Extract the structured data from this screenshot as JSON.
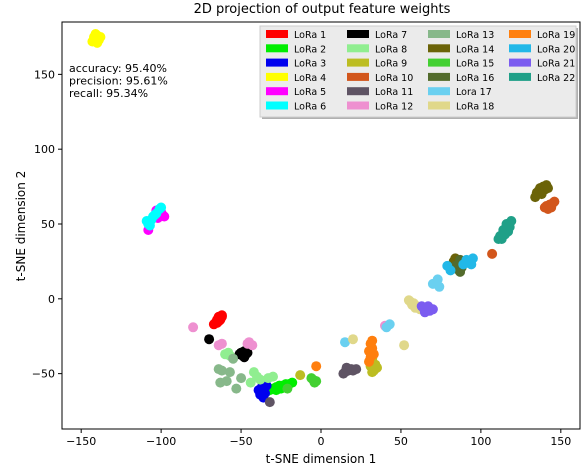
{
  "chart_data": {
    "type": "scatter",
    "title": "2D projection of output feature weights",
    "xlabel": "t-SNE dimension 1",
    "ylabel": "t-SNE dimension 2",
    "xlim": [
      -162,
      162
    ],
    "ylim": [
      -87,
      185
    ],
    "xticks": [
      -150,
      -100,
      -50,
      0,
      50,
      100,
      150
    ],
    "yticks": [
      -50,
      0,
      50,
      100,
      150
    ],
    "grid": false,
    "legend_position": "top-right",
    "legend_columns": 4,
    "annotation": [
      "accuracy: 95.40%",
      "precision: 95.61%",
      "recall: 95.34%"
    ],
    "series": [
      {
        "name": "LoRa 1",
        "color": "#ff0000",
        "points": [
          [
            -62,
            -12
          ],
          [
            -63,
            -14
          ],
          [
            -64,
            -15
          ],
          [
            -65,
            -16
          ],
          [
            -66,
            -16
          ],
          [
            -63,
            -13
          ],
          [
            -62,
            -11
          ],
          [
            -65,
            -14
          ],
          [
            -67,
            -17
          ],
          [
            -64,
            -12
          ]
        ]
      },
      {
        "name": "LoRa 2",
        "color": "#00ee00",
        "points": [
          [
            -30,
            -60
          ],
          [
            -28,
            -59
          ],
          [
            -26,
            -58
          ],
          [
            -24,
            -58
          ],
          [
            -22,
            -57
          ],
          [
            -20,
            -57
          ],
          [
            -32,
            -61
          ],
          [
            -34,
            -62
          ],
          [
            -28,
            -61
          ],
          [
            -25,
            -60
          ],
          [
            -18,
            -56
          ],
          [
            -35,
            -59
          ]
        ]
      },
      {
        "name": "LoRa 3",
        "color": "#0000ee",
        "points": [
          [
            -36,
            -60
          ],
          [
            -37,
            -62
          ],
          [
            -38,
            -64
          ],
          [
            -36,
            -66
          ],
          [
            -35,
            -63
          ],
          [
            -37,
            -59
          ],
          [
            -39,
            -61
          ],
          [
            -36,
            -57
          ],
          [
            -34,
            -58
          ]
        ]
      },
      {
        "name": "LoRa 4",
        "color": "#ffff00",
        "points": [
          [
            -140,
            176
          ],
          [
            -141,
            174
          ],
          [
            -142,
            175
          ],
          [
            -139,
            173
          ],
          [
            -143,
            172
          ],
          [
            -140,
            171
          ],
          [
            -141,
            177
          ],
          [
            -138,
            175
          ]
        ]
      },
      {
        "name": "LoRa 5",
        "color": "#ff00ff",
        "points": [
          [
            -100,
            58
          ],
          [
            -99,
            56
          ],
          [
            -102,
            54
          ],
          [
            -101,
            57
          ],
          [
            -108,
            46
          ],
          [
            -98,
            55
          ],
          [
            -103,
            59
          ]
        ]
      },
      {
        "name": "LoRa 6",
        "color": "#00ffff",
        "points": [
          [
            -106,
            53
          ],
          [
            -107,
            51
          ],
          [
            -105,
            55
          ],
          [
            -108,
            50
          ],
          [
            -104,
            56
          ],
          [
            -103,
            57
          ],
          [
            -107,
            49
          ],
          [
            -109,
            52
          ],
          [
            -101,
            60
          ],
          [
            -100,
            61
          ]
        ]
      },
      {
        "name": "LoRa 7",
        "color": "#000000",
        "points": [
          [
            -50,
            -36
          ],
          [
            -48,
            -35
          ],
          [
            -47,
            -37
          ],
          [
            -49,
            -38
          ],
          [
            -51,
            -37
          ],
          [
            -46,
            -36
          ],
          [
            -48,
            -39
          ],
          [
            -70,
            -27
          ]
        ]
      },
      {
        "name": "LoRa 8",
        "color": "#90ee90",
        "points": [
          [
            -57,
            -38
          ],
          [
            -58,
            -36
          ],
          [
            -40,
            -52
          ],
          [
            -38,
            -54
          ],
          [
            -44,
            -56
          ],
          [
            -33,
            -53
          ],
          [
            -30,
            -52
          ],
          [
            -42,
            -49
          ],
          [
            -60,
            -37
          ]
        ]
      },
      {
        "name": "LoRa 9",
        "color": "#bcbd22",
        "points": [
          [
            -13,
            -51
          ],
          [
            33,
            -48
          ],
          [
            32,
            -40
          ],
          [
            31,
            -45
          ],
          [
            34,
            -44
          ],
          [
            32,
            -49
          ],
          [
            35,
            -46
          ]
        ]
      },
      {
        "name": "LoRa 10",
        "color": "#d2561c",
        "points": [
          [
            141,
            62
          ],
          [
            143,
            63
          ],
          [
            145,
            64
          ],
          [
            144,
            61
          ],
          [
            142,
            60
          ],
          [
            146,
            65
          ],
          [
            107,
            30
          ],
          [
            140,
            61
          ]
        ]
      },
      {
        "name": "LoRa 11",
        "color": "#5f5464",
        "points": [
          [
            17,
            -48
          ],
          [
            19,
            -47
          ],
          [
            15,
            -49
          ],
          [
            20,
            -48
          ],
          [
            16,
            -46
          ],
          [
            14,
            -50
          ],
          [
            -32,
            -69
          ],
          [
            22,
            -47
          ]
        ]
      },
      {
        "name": "LoRa 12",
        "color": "#ee90d0",
        "points": [
          [
            -45,
            -29
          ],
          [
            -43,
            -31
          ],
          [
            -64,
            -31
          ],
          [
            -62,
            -30
          ],
          [
            -46,
            -30
          ],
          [
            40,
            -18
          ],
          [
            -80,
            -19
          ]
        ]
      },
      {
        "name": "LoRa 13",
        "color": "#87b88a",
        "points": [
          [
            -55,
            -40
          ],
          [
            -57,
            -49
          ],
          [
            -64,
            -47
          ],
          [
            -62,
            -48
          ],
          [
            -63,
            -56
          ],
          [
            -53,
            -60
          ],
          [
            -59,
            -55
          ],
          [
            -50,
            -53
          ]
        ]
      },
      {
        "name": "LoRa 14",
        "color": "#6b6308",
        "points": [
          [
            136,
            72
          ],
          [
            137,
            74
          ],
          [
            139,
            75
          ],
          [
            140,
            73
          ],
          [
            135,
            71
          ],
          [
            141,
            76
          ],
          [
            138,
            70
          ],
          [
            142,
            74
          ],
          [
            134,
            68
          ],
          [
            83,
            25
          ],
          [
            84,
            27
          ]
        ]
      },
      {
        "name": "LoRa 15",
        "color": "#43d032",
        "points": [
          [
            -5,
            -54
          ],
          [
            -3,
            -55
          ],
          [
            -4,
            -56
          ],
          [
            -6,
            -53
          ],
          [
            -21,
            -60
          ]
        ]
      },
      {
        "name": "LoRa 16",
        "color": "#536b2c",
        "points": [
          [
            84,
            22
          ],
          [
            85,
            20
          ],
          [
            86,
            23
          ],
          [
            87,
            26
          ],
          [
            87,
            18
          ],
          [
            88,
            21
          ]
        ]
      },
      {
        "name": "Lora 17",
        "color": "#6ad0f0",
        "points": [
          [
            73,
            13
          ],
          [
            74,
            8
          ],
          [
            43,
            -17
          ],
          [
            15,
            -29
          ],
          [
            41,
            -19
          ],
          [
            70,
            10
          ]
        ]
      },
      {
        "name": "LoRa 18",
        "color": "#e0d88a",
        "points": [
          [
            56,
            -2
          ],
          [
            58,
            -3
          ],
          [
            55,
            -1
          ],
          [
            60,
            -5
          ],
          [
            62,
            -7
          ],
          [
            57,
            -4
          ],
          [
            59,
            -6
          ],
          [
            20,
            -27
          ],
          [
            52,
            -31
          ]
        ]
      },
      {
        "name": "LoRa 19",
        "color": "#ff7f0e",
        "points": [
          [
            31,
            -30
          ],
          [
            32,
            -33
          ],
          [
            30,
            -35
          ],
          [
            33,
            -37
          ],
          [
            31,
            -39
          ],
          [
            -3,
            -45
          ],
          [
            32,
            -28
          ],
          [
            30,
            -42
          ]
        ]
      },
      {
        "name": "LoRa 20",
        "color": "#22b8e8",
        "points": [
          [
            91,
            26
          ],
          [
            93,
            25
          ],
          [
            95,
            27
          ],
          [
            92,
            24
          ],
          [
            94,
            23
          ],
          [
            89,
            23
          ],
          [
            81,
            19
          ],
          [
            79,
            22
          ]
        ]
      },
      {
        "name": "LoRa 21",
        "color": "#7b5cf0",
        "points": [
          [
            64,
            -6
          ],
          [
            66,
            -7
          ],
          [
            68,
            -8
          ],
          [
            65,
            -9
          ],
          [
            63,
            -5
          ],
          [
            67,
            -5
          ],
          [
            70,
            -7
          ]
        ]
      },
      {
        "name": "LoRa 22",
        "color": "#20a088",
        "points": [
          [
            113,
            40
          ],
          [
            115,
            43
          ],
          [
            117,
            45
          ],
          [
            114,
            46
          ],
          [
            112,
            42
          ],
          [
            118,
            48
          ],
          [
            119,
            52
          ],
          [
            116,
            50
          ],
          [
            111,
            40
          ]
        ]
      }
    ]
  }
}
